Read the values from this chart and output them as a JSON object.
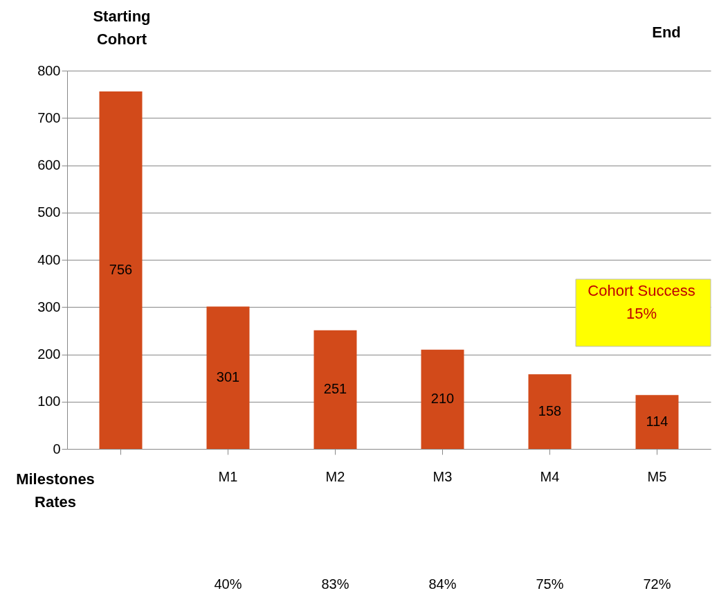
{
  "chart_data": {
    "type": "bar",
    "categories": [
      null,
      "M1",
      "M2",
      "M3",
      "M4",
      "M5"
    ],
    "values": [
      756,
      301,
      251,
      210,
      158,
      114
    ],
    "color": "#d24a1a",
    "data_labels": true,
    "ylim": [
      0,
      800
    ],
    "yticks": [
      0,
      100,
      200,
      300,
      400,
      500,
      600,
      700,
      800
    ],
    "grid": "y",
    "annotations": [
      "Starting\nCohort",
      "End",
      "Milestones\nRates",
      "Cohort Success\n15%",
      "40%",
      "83%",
      "84%",
      "75%",
      "72%"
    ]
  }
}
